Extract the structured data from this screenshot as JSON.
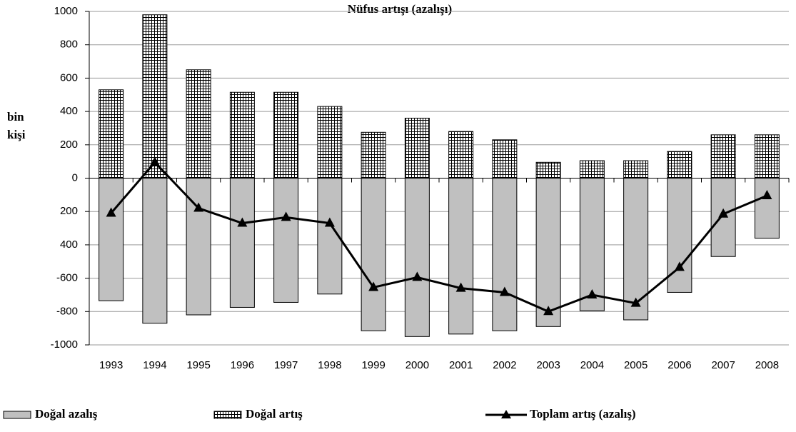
{
  "chart_data": {
    "type": "bar_line",
    "title": "Nüfus artışı (azalışı)",
    "ylabel": [
      "bin",
      "kişi"
    ],
    "categories": [
      "1993",
      "1994",
      "1995",
      "1996",
      "1997",
      "1998",
      "1999",
      "2000",
      "2001",
      "2002",
      "2003",
      "2004",
      "2005",
      "2006",
      "2007",
      "2008"
    ],
    "series": [
      {
        "name": "Doğal azalış",
        "type": "bar",
        "color": "#c0c0c0",
        "values": [
          -735,
          -870,
          -820,
          -775,
          -745,
          -695,
          -915,
          -950,
          -935,
          -915,
          -890,
          -795,
          -850,
          -685,
          -470,
          -360
        ]
      },
      {
        "name": "Doğal artış",
        "type": "bar",
        "color": "#000000",
        "pattern": "grid",
        "values": [
          530,
          980,
          650,
          515,
          515,
          430,
          275,
          360,
          280,
          230,
          95,
          105,
          105,
          160,
          260,
          260
        ]
      },
      {
        "name": "Toplam artış (azalış)",
        "type": "line",
        "color": "#000000",
        "marker": "triangle",
        "values": [
          -210,
          95,
          -180,
          -270,
          -235,
          -270,
          -655,
          -595,
          -660,
          -685,
          -800,
          -700,
          -750,
          -535,
          -215,
          -105
        ]
      }
    ],
    "ylim": [
      -1000,
      1000
    ],
    "yticks": [
      -1000,
      -800,
      -600,
      {
        "value": -400,
        "label": "400"
      },
      {
        "value": -200,
        "label": "200"
      },
      0,
      200,
      400,
      600,
      800,
      1000
    ],
    "grid": true,
    "legend": "bottom"
  }
}
